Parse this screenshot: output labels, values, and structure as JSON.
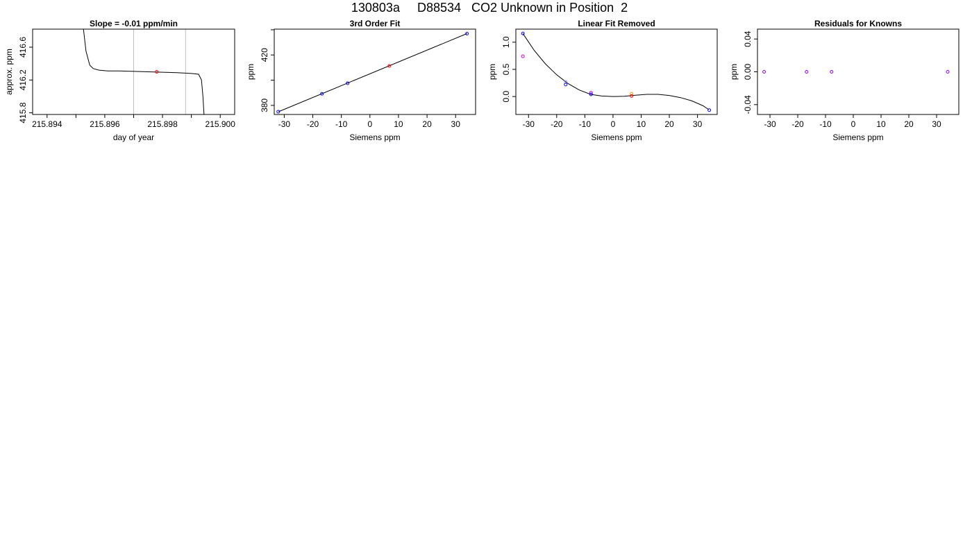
{
  "page_title": "130803a     D88534   CO2 Unknown in Position  2",
  "chart_data": [
    {
      "id": "p1",
      "type": "line",
      "title": "Slope =  -0.01  ppm/min",
      "xlabel": "day of year",
      "ylabel": "approx. ppm",
      "xlim": [
        215.8935,
        215.9005
      ],
      "ylim": [
        415.78,
        416.82
      ],
      "xticks": [
        215.894,
        215.896,
        215.898,
        215.9
      ],
      "xtick_labels": [
        "215.894",
        "215.896",
        "215.898",
        "215.900"
      ],
      "minor_xticks": [
        215.895,
        215.897,
        215.899
      ],
      "yticks": [
        415.8,
        416.2,
        416.6
      ],
      "ytick_labels": [
        "415.8",
        "416.2",
        "416.6"
      ],
      "vlines": [
        215.897,
        215.8988
      ],
      "vline_color": "#bebebe",
      "series": [
        {
          "x": [
            215.89525,
            215.89535,
            215.89548,
            215.8956,
            215.8958,
            215.8961,
            215.8965,
            215.897,
            215.8975,
            215.898,
            215.8985,
            215.899,
            215.89925,
            215.89935,
            215.8994,
            215.89945
          ],
          "y": [
            416.85,
            416.55,
            416.38,
            416.34,
            416.32,
            416.31,
            416.31,
            416.305,
            416.3,
            416.295,
            416.29,
            416.28,
            416.27,
            416.2,
            416.0,
            415.7
          ],
          "color": "#000000"
        }
      ],
      "points": [
        {
          "x": 215.8978,
          "y": 416.3,
          "color": "#ff0000"
        }
      ]
    },
    {
      "id": "p2",
      "type": "scatter",
      "title": "3rd Order Fit",
      "xlabel": "Siemens ppm",
      "ylabel": "ppm",
      "xlim": [
        -33.5,
        37
      ],
      "ylim": [
        372.8,
        440.5
      ],
      "xticks": [
        -30,
        -20,
        -10,
        0,
        10,
        20,
        30
      ],
      "xtick_labels": [
        "-30",
        "-20",
        "-10",
        "0",
        "10",
        "20",
        "30"
      ],
      "yticks": [
        380,
        420
      ],
      "ytick_labels": [
        "380",
        "420"
      ],
      "minor_yticks": [
        400,
        440
      ],
      "fit_line": {
        "x": [
          -32,
          34
        ],
        "y": [
          375,
          437
        ],
        "color": "#000000"
      },
      "points": [
        {
          "x": -32.1,
          "y": 375.0,
          "color": "#0000ff"
        },
        {
          "x": -16.8,
          "y": 389.2,
          "color": "#0000ff"
        },
        {
          "x": -7.8,
          "y": 397.6,
          "color": "#0000ff"
        },
        {
          "x": 6.8,
          "y": 411.3,
          "color": "#ff0000"
        },
        {
          "x": 34.0,
          "y": 436.9,
          "color": "#0000ff"
        }
      ]
    },
    {
      "id": "p3",
      "type": "scatter",
      "title": "Linear Fit Removed",
      "xlabel": "Siemens ppm",
      "ylabel": "ppm",
      "xlim": [
        -34.5,
        37
      ],
      "ylim": [
        -0.33,
        1.24
      ],
      "xticks": [
        -30,
        -20,
        -10,
        0,
        10,
        20,
        30
      ],
      "xtick_labels": [
        "-30",
        "-20",
        "-10",
        "0",
        "10",
        "20",
        "30"
      ],
      "yticks": [
        0.0,
        0.5,
        1.0
      ],
      "ytick_labels": [
        "0.0",
        "0.5",
        "1.0"
      ],
      "curve": {
        "x": [
          -32,
          -28,
          -24,
          -20,
          -16,
          -12,
          -8,
          -4,
          0,
          4,
          8,
          12,
          16,
          20,
          24,
          28,
          32,
          34
        ],
        "y": [
          1.16,
          0.85,
          0.6,
          0.4,
          0.24,
          0.12,
          0.04,
          0.01,
          0.0,
          0.005,
          0.025,
          0.04,
          0.04,
          0.02,
          -0.02,
          -0.08,
          -0.17,
          -0.24
        ],
        "color": "#000000"
      },
      "points": [
        {
          "x": -32.0,
          "y": 1.16,
          "color": "#0000ff"
        },
        {
          "x": -32.0,
          "y": 0.74,
          "color": "#cc00cc"
        },
        {
          "x": -16.8,
          "y": 0.27,
          "color": "#9999ff"
        },
        {
          "x": -16.8,
          "y": 0.22,
          "color": "#0000ff"
        },
        {
          "x": -7.8,
          "y": 0.07,
          "color": "#cc00cc"
        },
        {
          "x": -7.8,
          "y": 0.04,
          "color": "#0000ff"
        },
        {
          "x": 6.6,
          "y": 0.05,
          "color": "#ff9900"
        },
        {
          "x": 6.6,
          "y": 0.01,
          "color": "#ff0000"
        },
        {
          "x": 34.2,
          "y": -0.25,
          "color": "#0000ff"
        }
      ]
    },
    {
      "id": "p4",
      "type": "scatter",
      "title": "Residuals for Knowns",
      "xlabel": "Siemens ppm",
      "ylabel": "ppm",
      "xlim": [
        -34.5,
        38
      ],
      "ylim": [
        -0.052,
        0.052
      ],
      "xticks": [
        -30,
        -20,
        -10,
        0,
        10,
        20,
        30
      ],
      "xtick_labels": [
        "-30",
        "-20",
        "-10",
        "0",
        "10",
        "20",
        "30"
      ],
      "yticks": [
        -0.04,
        0.0,
        0.04
      ],
      "ytick_labels": [
        "-0.04",
        "0.00",
        "0.04"
      ],
      "points": [
        {
          "x": -32.1,
          "y": 0.0,
          "color": "#8800ff"
        },
        {
          "x": -16.8,
          "y": 0.0,
          "color": "#8800ff"
        },
        {
          "x": -7.8,
          "y": 0.0,
          "color": "#8800ff"
        },
        {
          "x": 34.0,
          "y": 0.0,
          "color": "#8800ff"
        }
      ]
    }
  ]
}
